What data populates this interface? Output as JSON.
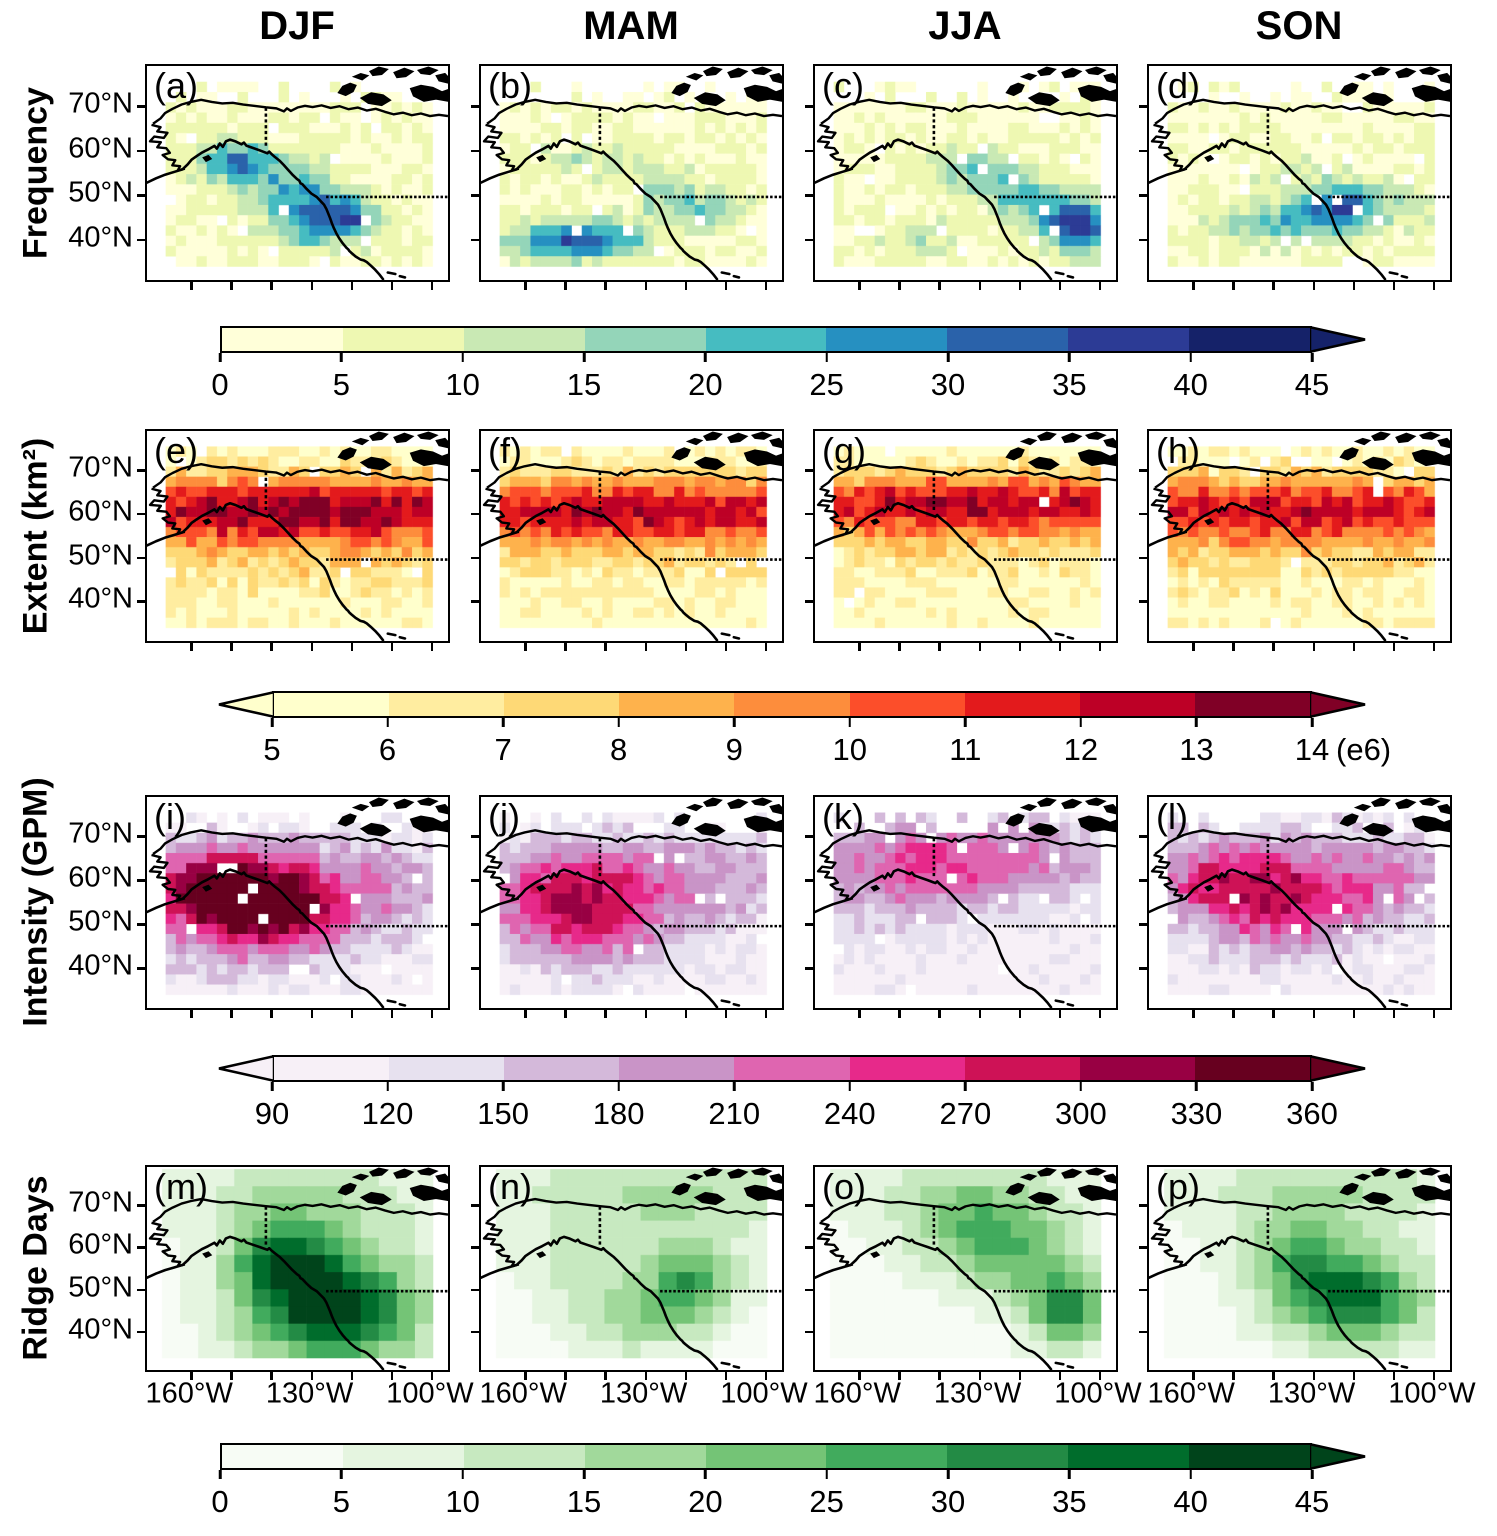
{
  "figure": {
    "columns": [
      "DJF",
      "MAM",
      "JJA",
      "SON"
    ],
    "axes": {
      "lat_tick_labels": [
        "70°N",
        "60°N",
        "50°N",
        "40°N"
      ],
      "lat_tick_values": [
        70,
        60,
        50,
        40
      ],
      "lon_tick_labels": [
        "160°W",
        "130°W",
        "100°W"
      ],
      "lon_tick_values": [
        -160,
        -130,
        -100
      ],
      "lon_minor_tick_values": [
        -160,
        -150,
        -140,
        -130,
        -120,
        -110,
        -100
      ],
      "map_extent": {
        "lon": [
          -171,
          -95
        ],
        "lat": [
          30,
          79
        ]
      }
    }
  },
  "chart_data": [
    {
      "type": "heatmap",
      "ylabel": "Frequency",
      "grid": {
        "cols": 26,
        "rows": 18,
        "lon_min": -166.3,
        "lon_max": -98.9,
        "lat_min": 33.1,
        "lat_max": 75.4
      },
      "cell_missing_rate": 0.03,
      "top_sparse_lat": 71,
      "top_keep": 0.35,
      "colorbar": {
        "vmin": 0,
        "vmax": 45,
        "extend": "max",
        "suffix": "",
        "tick_labels": [
          "0",
          "5",
          "10",
          "15",
          "20",
          "25",
          "30",
          "35",
          "40",
          "45"
        ],
        "colors": [
          "#ffffd9",
          "#eef8b2",
          "#c9e9b4",
          "#94d5b9",
          "#46bcc1",
          "#2690c1",
          "#2a62aa",
          "#2c3b95",
          "#152269"
        ]
      },
      "panels": [
        {
          "letter": "(a)",
          "season": "DJF",
          "base": 4,
          "noise": 4,
          "hotspots": [
            [
              -149,
              57,
              7,
              3.5,
              24
            ],
            [
              -135,
              52,
              7,
              4,
              16
            ],
            [
              -127,
              44,
              9,
              4.5,
              26
            ],
            [
              -120,
              45,
              4,
              3,
              14
            ]
          ]
        },
        {
          "letter": "(b)",
          "season": "MAM",
          "base": 4,
          "noise": 4,
          "hotspots": [
            [
              -152,
              39,
              9,
              3,
              26
            ],
            [
              -138,
              39.5,
              7,
              3,
              18
            ],
            [
              -115,
              46.5,
              9,
              3.5,
              14
            ],
            [
              -140,
              57.5,
              12,
              3,
              9
            ],
            [
              -125,
              50,
              5,
              3,
              8
            ]
          ]
        },
        {
          "letter": "(c)",
          "season": "JJA",
          "base": 4,
          "noise": 3.5,
          "hotspots": [
            [
              -104,
              42,
              5.5,
              4.5,
              30
            ],
            [
              -114,
              46,
              7,
              4,
              14
            ],
            [
              -131,
              55,
              9,
              4,
              13
            ],
            [
              -146,
              40,
              7,
              3,
              10
            ],
            [
              -121,
              51,
              6,
              3,
              10
            ]
          ]
        },
        {
          "letter": "(d)",
          "season": "SON",
          "base": 4,
          "noise": 4,
          "hotspots": [
            [
              -122,
              47.5,
              5,
              3.5,
              26
            ],
            [
              -131,
              44,
              8,
              4,
              15
            ],
            [
              -145,
              42.5,
              9,
              3,
              11
            ],
            [
              -110,
              47,
              8,
              4,
              10
            ],
            [
              -137,
              54,
              6,
              3,
              8
            ]
          ]
        }
      ]
    },
    {
      "type": "heatmap",
      "ylabel": "Extent (km²)",
      "grid": {
        "cols": 26,
        "rows": 18,
        "lon_min": -166.3,
        "lon_max": -98.9,
        "lat_min": 33.1,
        "lat_max": 75.4
      },
      "cell_missing_rate": 0.015,
      "top_sparse_lat": 71,
      "top_keep": 0.95,
      "colorbar": {
        "vmin": 5,
        "vmax": 14,
        "extend": "both",
        "suffix": "(e6)",
        "tick_labels": [
          "5",
          "6",
          "7",
          "8",
          "9",
          "10",
          "11",
          "12",
          "13",
          "14"
        ],
        "colors": [
          "#ffffcc",
          "#ffeda0",
          "#fed976",
          "#feb24c",
          "#fd8d3c",
          "#fc4e2a",
          "#e31a1c",
          "#bd0026",
          "#800026"
        ]
      },
      "panels": [
        {
          "letter": "(e)",
          "season": "DJF",
          "base": 5.3,
          "noise": 1.2,
          "hotspots": [
            [
              -130,
              61,
              60,
              5.5,
              7.4
            ],
            [
              -130,
              51,
              60,
              7,
              1.8
            ]
          ]
        },
        {
          "letter": "(f)",
          "season": "MAM",
          "base": 5.2,
          "noise": 1.1,
          "hotspots": [
            [
              -130,
              61,
              60,
              5.5,
              6.8
            ],
            [
              -130,
              51,
              60,
              7,
              1.7
            ]
          ]
        },
        {
          "letter": "(g)",
          "season": "JJA",
          "base": 5.2,
          "noise": 1.1,
          "hotspots": [
            [
              -130,
              62,
              60,
              5,
              7.0
            ],
            [
              -130,
              52,
              60,
              6.5,
              1.5
            ]
          ]
        },
        {
          "letter": "(h)",
          "season": "SON",
          "base": 5.3,
          "noise": 1.2,
          "hotspots": [
            [
              -130,
              61,
              60,
              5.5,
              6.4
            ],
            [
              -130,
              51,
              60,
              7,
              1.6
            ]
          ]
        }
      ]
    },
    {
      "type": "heatmap",
      "ylabel": "Intensity (GPM)",
      "grid": {
        "cols": 26,
        "rows": 18,
        "lon_min": -166.3,
        "lon_max": -98.9,
        "lat_min": 33.1,
        "lat_max": 75.4
      },
      "cell_missing_rate": 0.03,
      "top_sparse_lat": 71,
      "top_keep": 0.55,
      "colorbar": {
        "vmin": 90,
        "vmax": 360,
        "extend": "both",
        "suffix": "",
        "tick_labels": [
          "90",
          "120",
          "150",
          "180",
          "210",
          "240",
          "270",
          "300",
          "330",
          "360"
        ],
        "colors": [
          "#f7f0f7",
          "#e7e1ef",
          "#d4b9da",
          "#c994c7",
          "#df65b0",
          "#e7298a",
          "#ce1256",
          "#980043",
          "#67001f"
        ]
      },
      "panels": [
        {
          "letter": "(i)",
          "season": "DJF",
          "base": 95,
          "noise": 28,
          "hotspots": [
            [
              -154,
              57,
              13,
              7,
              235
            ],
            [
              -138,
              52,
              11,
              6,
              150
            ],
            [
              -122,
              58,
              25,
              9,
              110
            ],
            [
              -150,
              40,
              20,
              5,
              40
            ]
          ]
        },
        {
          "letter": "(j)",
          "season": "MAM",
          "base": 100,
          "noise": 25,
          "hotspots": [
            [
              -150,
              55,
              14,
              8,
              150
            ],
            [
              -122,
              59,
              24,
              8,
              100
            ],
            [
              -140,
              45,
              15,
              6,
              60
            ]
          ]
        },
        {
          "letter": "(k)",
          "season": "JJA",
          "base": 105,
          "noise": 20,
          "hotspots": [
            [
              -140,
              66,
              28,
              7,
              85
            ],
            [
              -152,
              57,
              16,
              8,
              55
            ],
            [
              -120,
              62,
              20,
              7,
              50
            ]
          ]
        },
        {
          "letter": "(l)",
          "season": "SON",
          "base": 100,
          "noise": 28,
          "hotspots": [
            [
              -152,
              60,
              13,
              7,
              150
            ],
            [
              -118,
              60,
              20,
              8,
              115
            ],
            [
              -136,
              50,
              14,
              7,
              95
            ]
          ]
        }
      ]
    },
    {
      "type": "heatmap",
      "ylabel": "Ridge Days",
      "grid": {
        "cols": 15,
        "rows": 11,
        "lon_min": -167.2,
        "lon_max": -98.8,
        "lat_min": 32.9,
        "lat_max": 78.5
      },
      "cell_missing_rate": 0,
      "top_sparse_lat": 90,
      "top_keep": 1,
      "colorbar": {
        "vmin": 0,
        "vmax": 45,
        "extend": "max",
        "suffix": "",
        "tick_labels": [
          "0",
          "5",
          "10",
          "15",
          "20",
          "25",
          "30",
          "35",
          "40",
          "45"
        ],
        "colors": [
          "#f7fcf5",
          "#e5f5e0",
          "#c7e9c0",
          "#a1d99b",
          "#74c476",
          "#41ab5d",
          "#238b45",
          "#006d2c",
          "#00441b"
        ]
      },
      "panels": [
        {
          "letter": "(m)",
          "season": "DJF",
          "base": 2,
          "noise": 0,
          "hotspots": [
            [
              -124,
              45,
              16,
              10,
              42
            ],
            [
              -137,
              57,
              9,
              7,
              24
            ],
            [
              -130,
              72,
              25,
              8,
              12
            ]
          ]
        },
        {
          "letter": "(n)",
          "season": "MAM",
          "base": 3,
          "noise": 0,
          "hotspots": [
            [
              -118,
              51.5,
              8,
              6,
              24
            ],
            [
              -132,
              42,
              12,
              6,
              14
            ],
            [
              -125,
              72,
              28,
              9,
              13
            ],
            [
              -145,
              55,
              10,
              6,
              8
            ]
          ]
        },
        {
          "letter": "(o)",
          "season": "JJA",
          "base": 3,
          "noise": 0,
          "hotspots": [
            [
              -107,
              44,
              7,
              6,
              28
            ],
            [
              -127,
              63,
              14,
              7,
              20
            ],
            [
              -118,
              53,
              10,
              6,
              12
            ],
            [
              -135,
              73,
              20,
              6,
              10
            ]
          ]
        },
        {
          "letter": "(p)",
          "season": "SON",
          "base": 3,
          "noise": 0,
          "hotspots": [
            [
              -119,
              47,
              13,
              7.5,
              33
            ],
            [
              -134,
              57,
              10,
              7,
              17
            ],
            [
              -125,
              73,
              25,
              8,
              12
            ]
          ]
        }
      ]
    }
  ]
}
